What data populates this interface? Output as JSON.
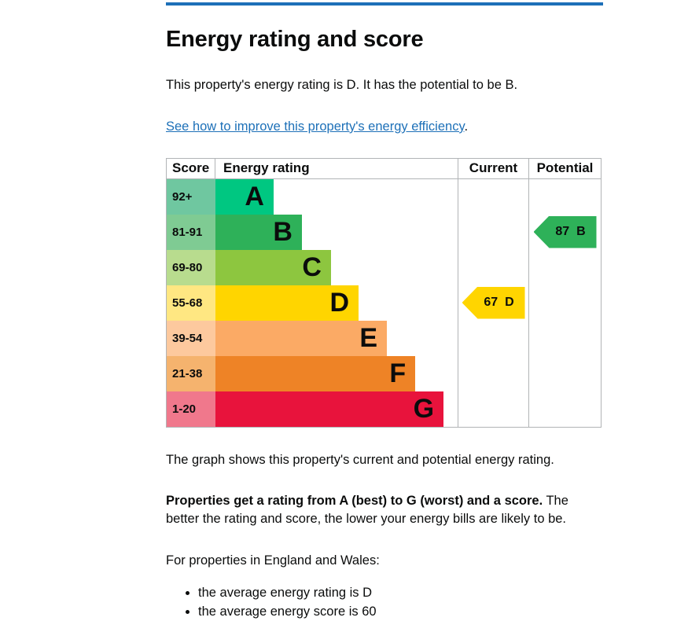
{
  "page": {
    "title": "Energy rating and score",
    "intro": "This property's energy rating is D. It has the potential to be B.",
    "improve_link": "See how to improve this property's energy efficiency",
    "improve_suffix": ".",
    "graph_caption": "The graph shows this property's current and potential energy rating.",
    "explain_bold": "Properties get a rating from A (best) to G (worst) and a score.",
    "explain_rest": " The better the rating and score, the lower your energy bills are likely to be.",
    "region_heading": "For properties in England and Wales:",
    "bullets": [
      "the average energy rating is D",
      "the average energy score is 60"
    ]
  },
  "colors": {
    "rule_blue": "#1d70b8",
    "link_blue": "#1d70b8",
    "border_grey": "#b1b4b6",
    "text": "#0b0c0c"
  },
  "chart_data": {
    "type": "bar",
    "title": "Energy rating and score",
    "columns": [
      "Score",
      "Energy rating",
      "Current",
      "Potential"
    ],
    "legend_position": "none",
    "grid": false,
    "bands": [
      {
        "range": "92+",
        "letter": "A",
        "bar_color": "#00c781",
        "cell_color": "#6fc7a0",
        "width_pct": 24.0
      },
      {
        "range": "81-91",
        "letter": "B",
        "bar_color": "#2eb159",
        "cell_color": "#7fcb93",
        "width_pct": 35.7
      },
      {
        "range": "69-80",
        "letter": "C",
        "bar_color": "#8dc63f",
        "cell_color": "#b8dc8e",
        "width_pct": 47.7
      },
      {
        "range": "55-68",
        "letter": "D",
        "bar_color": "#ffd500",
        "cell_color": "#ffe782",
        "width_pct": 59.1
      },
      {
        "range": "39-54",
        "letter": "E",
        "bar_color": "#fbaa65",
        "cell_color": "#fdc99e",
        "width_pct": 70.8
      },
      {
        "range": "21-38",
        "letter": "F",
        "bar_color": "#ee8326",
        "cell_color": "#f5b36e",
        "width_pct": 82.5
      },
      {
        "range": "1-20",
        "letter": "G",
        "bar_color": "#e8133c",
        "cell_color": "#f0788c",
        "width_pct": 94.2
      }
    ],
    "current": {
      "score": "67",
      "rating": "D",
      "color": "#ffd500",
      "row_index": 3
    },
    "potential": {
      "score": "87",
      "rating": "B",
      "color": "#2eb159",
      "row_index": 1
    }
  }
}
